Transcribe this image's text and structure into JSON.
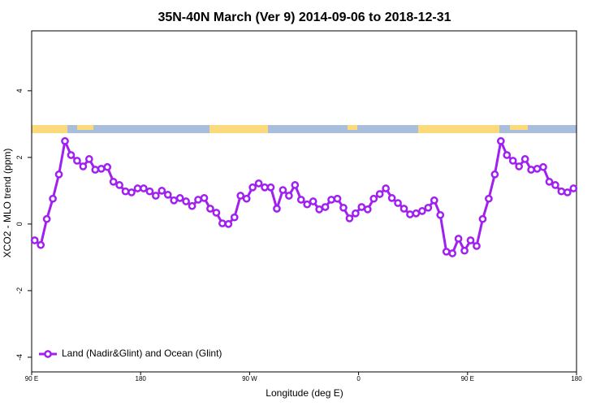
{
  "chart_data": {
    "type": "line",
    "title": "35N-40N March (Ver 9)   2014-09-06 to 2018-12-31",
    "x_label": "Longitude (deg E)",
    "y_label": "XCO2 - MLO trend (ppm)",
    "x": [
      92.5,
      97.5,
      102.5,
      107.5,
      112.5,
      117.5,
      122.5,
      127.5,
      132.5,
      137.5,
      142.5,
      147.5,
      152.5,
      157.5,
      162.5,
      167.5,
      172.5,
      177.5,
      182.5,
      187.5,
      192.5,
      197.5,
      202.5,
      207.5,
      212.5,
      217.5,
      222.5,
      227.5,
      232.5,
      237.5,
      242.5,
      247.5,
      252.5,
      257.5,
      262.5,
      267.5,
      272.5,
      277.5,
      282.5,
      287.5,
      292.5,
      297.5,
      302.5,
      307.5,
      312.5,
      317.5,
      322.5,
      327.5,
      332.5,
      337.5,
      342.5,
      347.5,
      352.5,
      357.5,
      362.5,
      367.5,
      372.5,
      377.5,
      382.5,
      387.5,
      392.5,
      397.5,
      402.5,
      407.5,
      412.5,
      417.5,
      422.5,
      427.5,
      432.5,
      437.5,
      442.5,
      447.5,
      452.5,
      457.5,
      462.5,
      467.5,
      472.5,
      477.5,
      482.5,
      487.5,
      492.5,
      497.5,
      502.5,
      507.5,
      512.5,
      517.5,
      522.5,
      527.5,
      532.5,
      537.5
    ],
    "series": [
      {
        "name": "Land (Nadir&Glint) and Ocean (Glint)",
        "color": "#a020f0",
        "values": [
          -0.49,
          -0.63,
          0.15,
          0.76,
          1.49,
          2.49,
          2.07,
          1.9,
          1.73,
          1.95,
          1.63,
          1.66,
          1.71,
          1.27,
          1.17,
          0.98,
          0.95,
          1.07,
          1.07,
          0.98,
          0.85,
          1.0,
          0.88,
          0.71,
          0.78,
          0.68,
          0.54,
          0.73,
          0.78,
          0.46,
          0.34,
          0.02,
          0.0,
          0.2,
          0.85,
          0.76,
          1.1,
          1.22,
          1.1,
          1.1,
          0.46,
          1.02,
          0.85,
          1.17,
          0.73,
          0.59,
          0.68,
          0.44,
          0.51,
          0.73,
          0.76,
          0.49,
          0.17,
          0.32,
          0.51,
          0.44,
          0.76,
          0.9,
          1.07,
          0.78,
          0.63,
          0.46,
          0.29,
          0.32,
          0.39,
          0.49,
          0.71,
          0.27,
          -0.83,
          -0.88,
          -0.44,
          -0.8,
          -0.49,
          -0.66,
          0.15,
          0.76,
          1.49,
          2.49,
          2.07,
          1.9,
          1.73,
          1.95,
          1.63,
          1.66,
          1.71,
          1.27,
          1.17,
          0.98,
          0.95,
          1.07
        ]
      }
    ],
    "xlim": [
      90,
      540
    ],
    "xticks": [
      {
        "value": 90,
        "label": "90 E"
      },
      180,
      {
        "value": 270,
        "label": "90 W"
      },
      {
        "value": 360,
        "label": "0"
      },
      {
        "value": 450,
        "label": "90 E"
      },
      {
        "value": 540,
        "label": "180"
      }
    ],
    "ylim": [
      -4.44,
      5.8
    ],
    "yticks": [
      -4,
      -2,
      0,
      2,
      4
    ],
    "legend": "bottom-left"
  }
}
